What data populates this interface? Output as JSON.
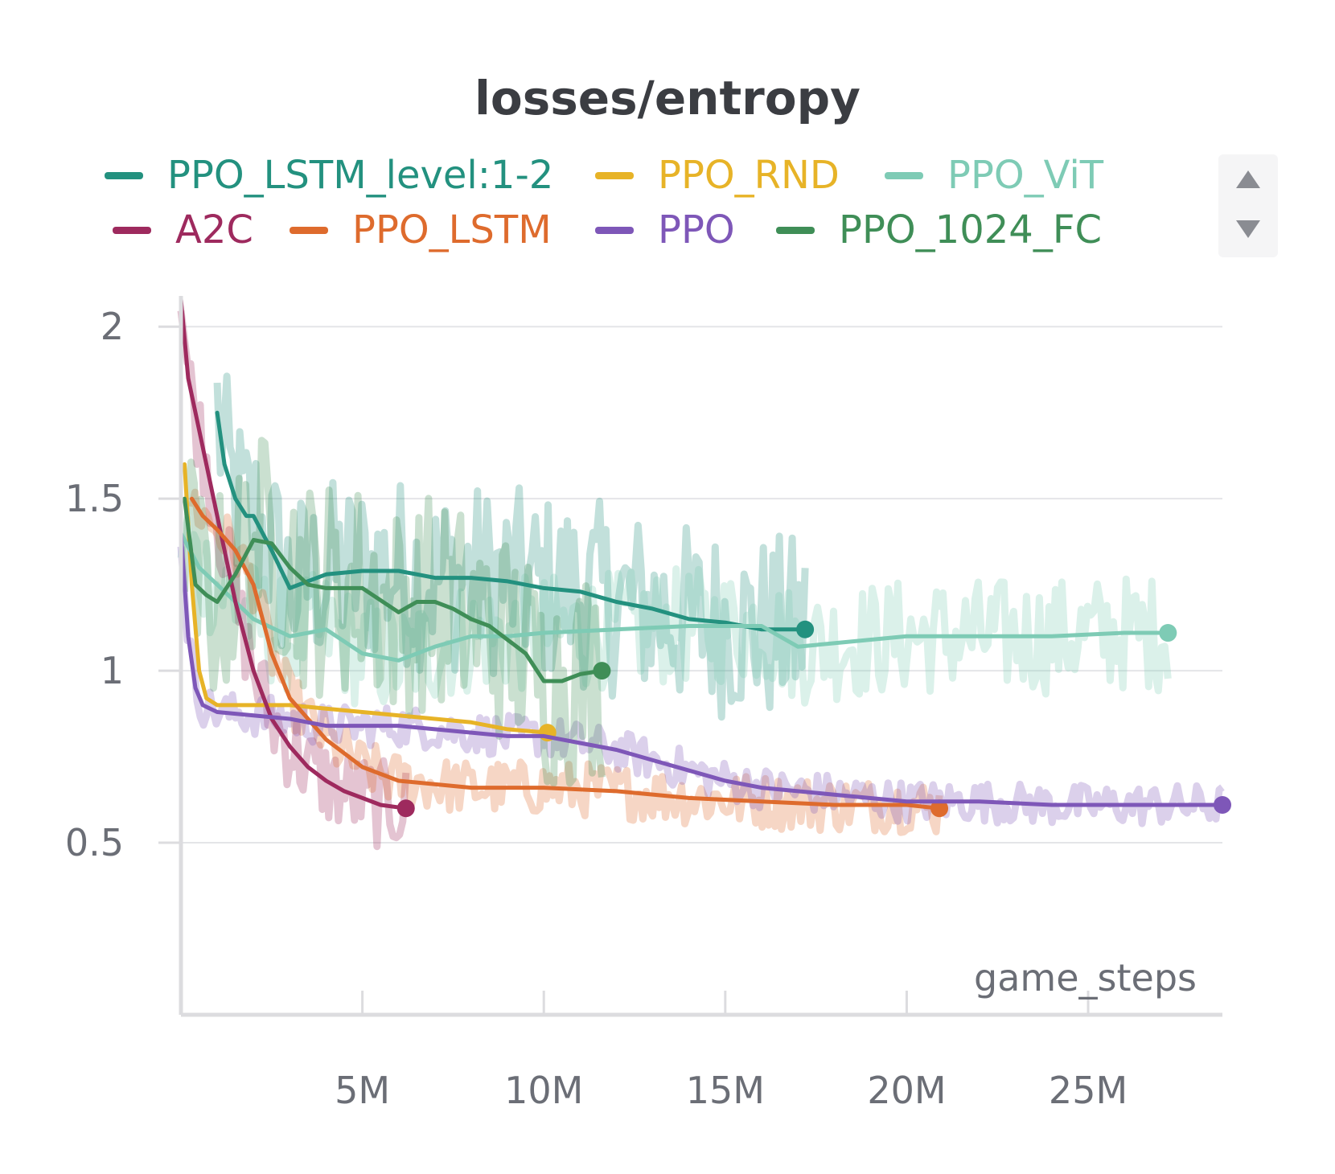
{
  "chart_data": {
    "type": "line",
    "title": "losses/entropy",
    "xlabel": "game_steps",
    "ylabel": "",
    "xlim": [
      0,
      28700000
    ],
    "ylim": [
      0.0,
      2.08
    ],
    "x_ticks": [
      5000000,
      10000000,
      15000000,
      20000000,
      25000000
    ],
    "x_tick_labels": [
      "5M",
      "10M",
      "15M",
      "20M",
      "25M"
    ],
    "y_ticks": [
      0.5,
      1,
      1.5,
      2
    ],
    "y_tick_labels": [
      "0.5",
      "1",
      "1.5",
      "2"
    ],
    "grid": "horizontal",
    "legend_position": "top",
    "series": [
      {
        "name": "PPO_LSTM_level:1-2",
        "color": "#23917f",
        "x": [
          1000000,
          1200000,
          1500000,
          1800000,
          2000000,
          2500000,
          3000000,
          4000000,
          5000000,
          6000000,
          7000000,
          8000000,
          9000000,
          10000000,
          11000000,
          12000000,
          13000000,
          14000000,
          15000000,
          16000000,
          17200000
        ],
        "y": [
          1.75,
          1.6,
          1.5,
          1.45,
          1.45,
          1.35,
          1.24,
          1.28,
          1.29,
          1.29,
          1.27,
          1.27,
          1.26,
          1.24,
          1.23,
          1.2,
          1.18,
          1.15,
          1.14,
          1.12,
          1.12
        ],
        "noisy": true,
        "noise": 0.28
      },
      {
        "name": "PPO_RND",
        "color": "#e7b327",
        "x": [
          100000,
          300000,
          500000,
          700000,
          1000000,
          1500000,
          2000000,
          3000000,
          4000000,
          5000000,
          6000000,
          7000000,
          8000000,
          9000000,
          10100000
        ],
        "y": [
          1.6,
          1.25,
          1.0,
          0.92,
          0.9,
          0.9,
          0.9,
          0.9,
          0.89,
          0.88,
          0.87,
          0.86,
          0.85,
          0.83,
          0.82
        ],
        "noisy": false,
        "noise": 0.0
      },
      {
        "name": "PPO_ViT",
        "color": "#7ecbb5",
        "x": [
          0,
          500000,
          1000000,
          2000000,
          3000000,
          4000000,
          5000000,
          6000000,
          7000000,
          8000000,
          9000000,
          10000000,
          12000000,
          14000000,
          16000000,
          17000000,
          18000000,
          20000000,
          22000000,
          24000000,
          26000000,
          27200000
        ],
        "y": [
          1.4,
          1.3,
          1.25,
          1.15,
          1.1,
          1.12,
          1.05,
          1.03,
          1.07,
          1.1,
          1.1,
          1.11,
          1.12,
          1.13,
          1.13,
          1.07,
          1.08,
          1.1,
          1.1,
          1.1,
          1.11,
          1.11
        ],
        "noisy": true,
        "noise": 0.17
      },
      {
        "name": "A2C",
        "color": "#9e2a5e",
        "x": [
          0,
          200000,
          500000,
          1000000,
          1500000,
          2000000,
          2500000,
          3000000,
          3500000,
          4000000,
          4500000,
          5000000,
          5500000,
          6200000
        ],
        "y": [
          2.08,
          1.85,
          1.7,
          1.45,
          1.2,
          1.0,
          0.86,
          0.78,
          0.72,
          0.68,
          0.65,
          0.63,
          0.61,
          0.6
        ],
        "noisy": true,
        "noise": 0.13
      },
      {
        "name": "PPO_LSTM",
        "color": "#de6b2d",
        "x": [
          300000,
          600000,
          1000000,
          1500000,
          2000000,
          2500000,
          3000000,
          4000000,
          5000000,
          6000000,
          8000000,
          10000000,
          12000000,
          14000000,
          16000000,
          18000000,
          20000000,
          20900000
        ],
        "y": [
          1.5,
          1.45,
          1.41,
          1.35,
          1.25,
          1.05,
          0.92,
          0.8,
          0.72,
          0.68,
          0.66,
          0.66,
          0.65,
          0.63,
          0.62,
          0.61,
          0.61,
          0.6
        ],
        "noisy": true,
        "noise": 0.08
      },
      {
        "name": "PPO",
        "color": "#7e57b8",
        "x": [
          0,
          200000,
          400000,
          600000,
          1000000,
          2000000,
          3000000,
          4000000,
          5000000,
          6000000,
          7000000,
          8000000,
          9000000,
          10000000,
          11000000,
          12000000,
          13000000,
          14000000,
          15000000,
          16000000,
          18000000,
          20000000,
          22000000,
          24000000,
          26000000,
          28700000
        ],
        "y": [
          1.4,
          1.1,
          0.95,
          0.9,
          0.88,
          0.87,
          0.86,
          0.84,
          0.84,
          0.84,
          0.83,
          0.82,
          0.81,
          0.81,
          0.79,
          0.77,
          0.74,
          0.71,
          0.68,
          0.66,
          0.64,
          0.62,
          0.62,
          0.61,
          0.61,
          0.61
        ],
        "noisy": true,
        "noise": 0.06
      },
      {
        "name": "PPO_1024_FC",
        "color": "#3f8e57",
        "x": [
          100000,
          400000,
          700000,
          1000000,
          1500000,
          2000000,
          2500000,
          3000000,
          3500000,
          4000000,
          5000000,
          6000000,
          6500000,
          7000000,
          7500000,
          8000000,
          8500000,
          9000000,
          9500000,
          10000000,
          10500000,
          11000000,
          11600000
        ],
        "y": [
          1.5,
          1.25,
          1.22,
          1.2,
          1.28,
          1.38,
          1.37,
          1.3,
          1.25,
          1.24,
          1.24,
          1.17,
          1.2,
          1.2,
          1.18,
          1.15,
          1.13,
          1.09,
          1.05,
          0.97,
          0.97,
          0.99,
          1.0
        ],
        "noisy": true,
        "noise": 0.32
      }
    ]
  }
}
